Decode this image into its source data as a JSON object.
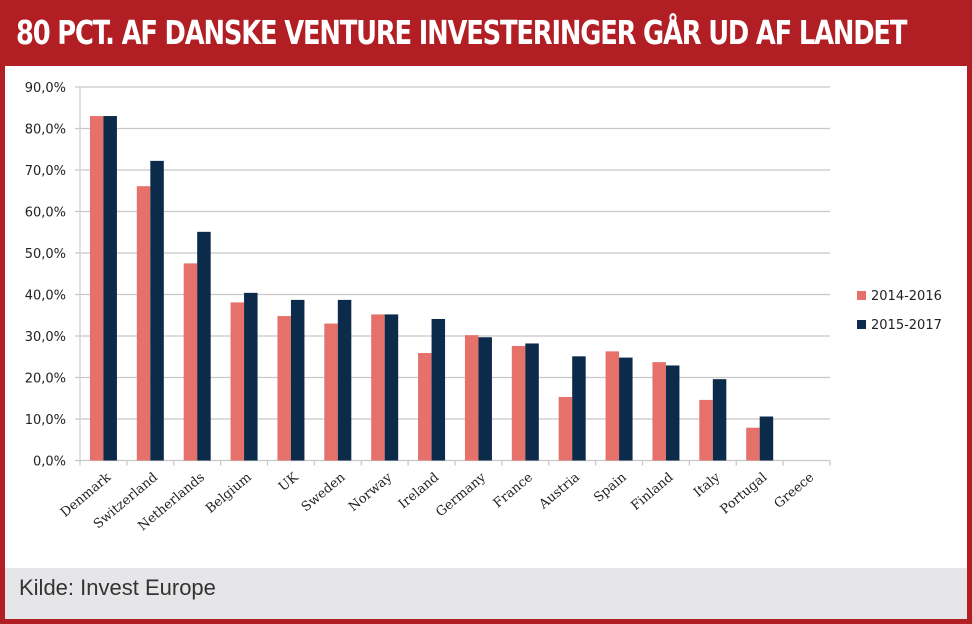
{
  "title": "80 PCT. AF DANSKE VENTURE INVESTERINGER GÅR UD AF LANDET",
  "footer": "Kilde: Invest Europe",
  "colors": {
    "s1": "#e5716a",
    "s2": "#0c2a4a",
    "frame": "#b11e24"
  },
  "chart_data": {
    "type": "bar",
    "title": "",
    "xlabel": "",
    "ylabel": "",
    "ylim": [
      0,
      90
    ],
    "yticks": [
      0,
      10,
      20,
      30,
      40,
      50,
      60,
      70,
      80,
      90
    ],
    "ytick_labels": [
      "0,0%",
      "10,0%",
      "20,0%",
      "30,0%",
      "40,0%",
      "50,0%",
      "60,0%",
      "70,0%",
      "80,0%",
      "90,0%"
    ],
    "grid": true,
    "legend_position": "right",
    "categories": [
      "Denmark",
      "Switzerland",
      "Netherlands",
      "Belgium",
      "UK",
      "Sweden",
      "Norway",
      "Ireland",
      "Germany",
      "France",
      "Austria",
      "Spain",
      "Finland",
      "Italy",
      "Portugal",
      "Greece"
    ],
    "series": [
      {
        "name": "2014-2016",
        "values": [
          83.0,
          66.1,
          47.5,
          38.1,
          34.8,
          33.0,
          35.2,
          25.9,
          30.2,
          27.6,
          15.3,
          26.3,
          23.7,
          14.6,
          7.9,
          0
        ]
      },
      {
        "name": "2015-2017",
        "values": [
          83.0,
          72.2,
          55.1,
          40.4,
          38.7,
          38.7,
          35.2,
          34.1,
          29.7,
          28.2,
          25.1,
          24.8,
          22.9,
          19.6,
          10.6,
          0
        ]
      }
    ]
  }
}
